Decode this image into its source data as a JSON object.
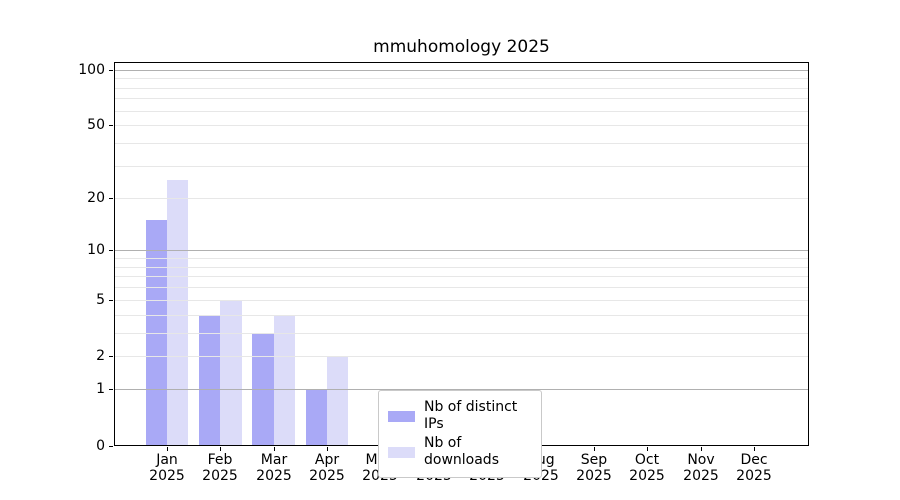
{
  "title": "mmuhomology 2025",
  "chart_data": {
    "type": "bar",
    "title": "mmuhomology 2025",
    "categories": [
      "Jan",
      "Feb",
      "Mar",
      "Apr",
      "May",
      "Jun",
      "Jul",
      "Aug",
      "Sep",
      "Oct",
      "Nov",
      "Dec"
    ],
    "x_year_label": "2025",
    "series": [
      {
        "name": "Nb of distinct IPs",
        "color": "#a9a9f6",
        "values": [
          15,
          4,
          3,
          1,
          0,
          0,
          0,
          0,
          0,
          0,
          0,
          0
        ]
      },
      {
        "name": "Nb of downloads",
        "color": "#dcdcf9",
        "values": [
          25,
          5,
          4,
          2,
          0,
          0,
          0,
          0,
          0,
          0,
          0,
          0
        ]
      }
    ],
    "y_scale": "log1p",
    "y_ticks": [
      100,
      50,
      20,
      10,
      5,
      2,
      1,
      0
    ],
    "ylim": [
      0,
      110
    ],
    "grid": "horizontal major+minor, drawn above bars",
    "grid_major_values": [
      1,
      10,
      100
    ],
    "grid_minor_values": [
      2,
      3,
      4,
      5,
      6,
      7,
      8,
      9,
      20,
      30,
      40,
      50,
      60,
      70,
      80,
      90
    ],
    "grid_major_color": "#b0b0b0",
    "grid_minor_color": "#e7e7e7",
    "axis_color": "#000000",
    "legend_position": "inside bottom, left of center"
  },
  "legend": {
    "items": [
      {
        "label": "Nb of distinct IPs",
        "color": "#a9a9f6"
      },
      {
        "label": "Nb of downloads",
        "color": "#dcdcf9"
      }
    ]
  }
}
